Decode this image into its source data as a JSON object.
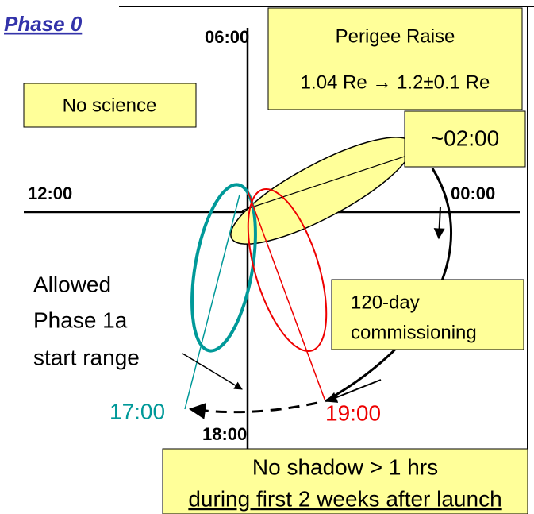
{
  "title": "Phase 0",
  "axis_labels": {
    "top": "06:00",
    "left": "12:00",
    "right": "00:00",
    "bottom": "18:00"
  },
  "boxes": {
    "perigee": [
      "Perigee Raise",
      "1.04 Re → 1.2±0.1 Re"
    ],
    "no_science": "No science",
    "apogee": "~02:00",
    "commissioning": [
      "120-day",
      "commissioning"
    ],
    "shadow": [
      "No shadow > 1 hrs",
      "during first 2 weeks after launch"
    ]
  },
  "allowed": [
    "Allowed",
    "Phase 1a",
    "start range"
  ],
  "times": {
    "early": "17:00",
    "late": "19:00"
  }
}
